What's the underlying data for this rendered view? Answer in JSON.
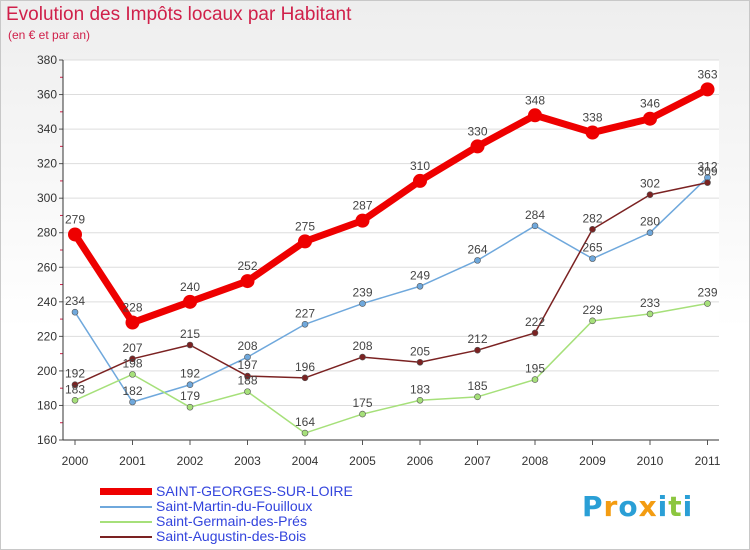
{
  "header": {
    "title": "Evolution des Impôts locaux par Habitant",
    "subtitle": "(en € et par an)"
  },
  "logo": {
    "text": "Proxiti",
    "letters": [
      {
        "char": "P",
        "color": "#2a9fd6"
      },
      {
        "char": "r",
        "color": "#f39c12"
      },
      {
        "char": "o",
        "color": "#2a9fd6"
      },
      {
        "char": "x",
        "color": "#f39c12"
      },
      {
        "char": "i",
        "color": "#2a9fd6"
      },
      {
        "char": "t",
        "color": "#8cc63f"
      },
      {
        "char": "i",
        "color": "#2a9fd6"
      }
    ]
  },
  "chart_data": {
    "type": "line",
    "title": "Evolution des Impôts locaux par Habitant",
    "subtitle": "(en € et par an)",
    "x": [
      "2000",
      "2001",
      "2002",
      "2003",
      "2004",
      "2005",
      "2006",
      "2007",
      "2008",
      "2009",
      "2010",
      "2011"
    ],
    "ylim": [
      160,
      380
    ],
    "yticks": [
      160,
      180,
      200,
      220,
      240,
      260,
      280,
      300,
      320,
      340,
      360,
      380
    ],
    "grid": "horizontal",
    "legend_position": "bottom-left",
    "series": [
      {
        "name": "SAINT-GEORGES-SUR-LOIRE",
        "color": "#ee0000",
        "width": 7,
        "values": [
          279,
          228,
          240,
          252,
          275,
          287,
          310,
          330,
          348,
          338,
          346,
          363
        ]
      },
      {
        "name": "Saint-Martin-du-Fouilloux",
        "color": "#6fa8dc",
        "width": 1.5,
        "values": [
          234,
          182,
          192,
          208,
          227,
          239,
          249,
          264,
          284,
          265,
          280,
          312
        ]
      },
      {
        "name": "Saint-Germain-des-Prés",
        "color": "#a6e07a",
        "width": 1.5,
        "values": [
          183,
          198,
          179,
          188,
          164,
          175,
          183,
          185,
          195,
          229,
          233,
          239
        ]
      },
      {
        "name": "Saint-Augustin-des-Bois",
        "color": "#7b2222",
        "width": 1.5,
        "values": [
          192,
          207,
          215,
          197,
          196,
          208,
          205,
          212,
          222,
          282,
          302,
          309
        ]
      }
    ]
  }
}
